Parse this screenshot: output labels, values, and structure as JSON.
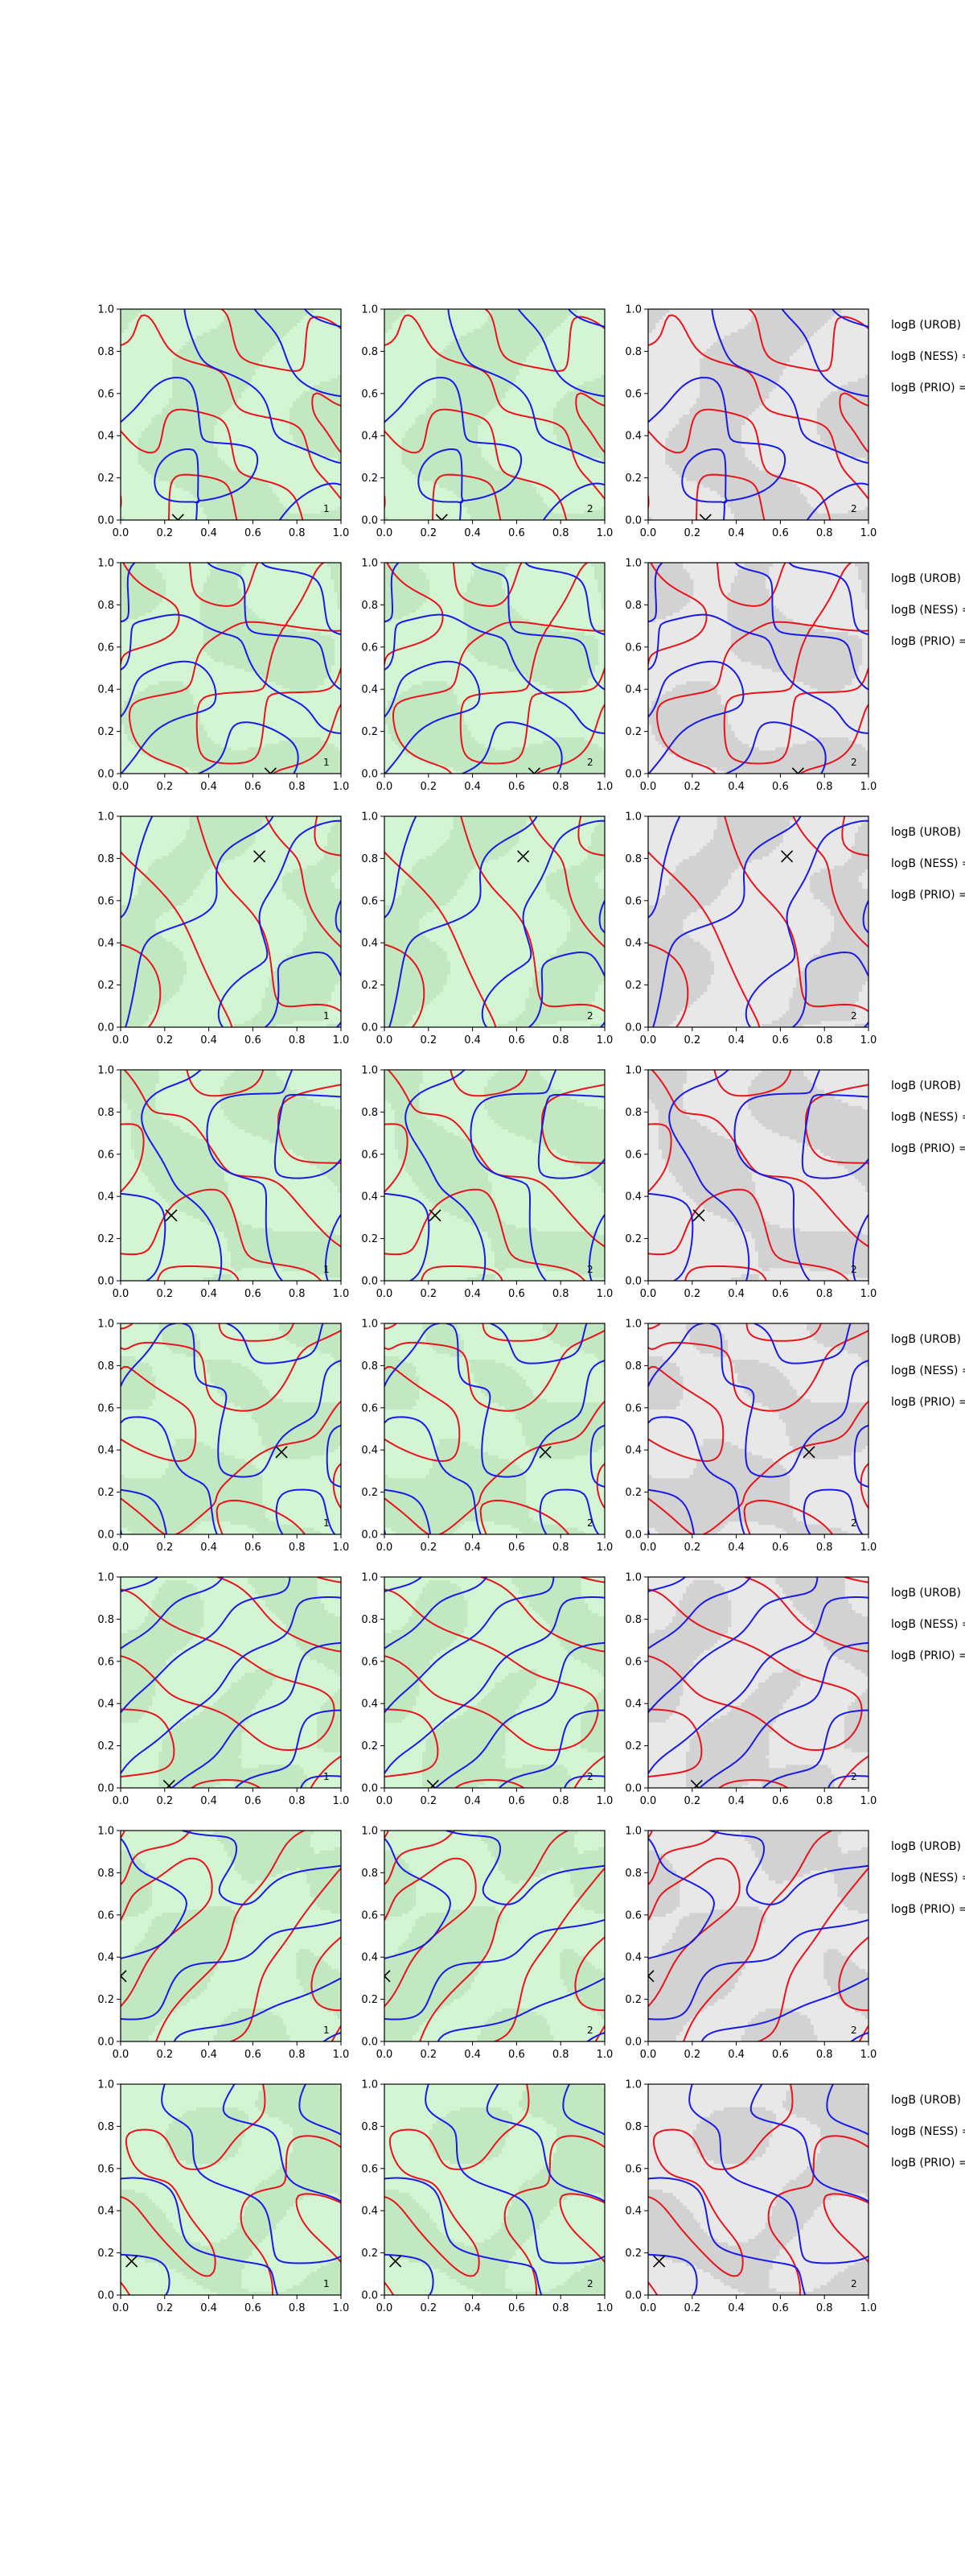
{
  "chart_data": {
    "type": "contour",
    "layout": {
      "rows": 8,
      "cols": 3
    },
    "xlim": [
      0.0,
      1.0
    ],
    "ylim": [
      0.0,
      1.0
    ],
    "ticks": [
      "0.0",
      "0.2",
      "0.4",
      "0.6",
      "0.8",
      "1.0"
    ],
    "tick_values": [
      0.0,
      0.2,
      0.4,
      0.6,
      0.8,
      1.0
    ],
    "colors": {
      "contour_a": "#e8141c",
      "contour_b": "#1a1ae6",
      "fill_green_light": "#d4f5d4",
      "fill_green_mid": "#c2e8c2",
      "fill_gray_light": "#e8e8e8",
      "fill_gray_mid": "#d2d2d2",
      "marker": "#000000"
    },
    "side_labels": [
      "logB (UROB) =",
      "logB (NESS) =",
      "logB (PRIO) ="
    ],
    "column_corner_labels": [
      "1",
      "2",
      "2"
    ],
    "column_backgrounds": [
      "green",
      "green",
      "gray"
    ],
    "rows": [
      {
        "marker": [
          0.26,
          0.0
        ],
        "seed": 11
      },
      {
        "marker": [
          0.68,
          0.0
        ],
        "seed": 23
      },
      {
        "marker": [
          0.63,
          0.81
        ],
        "seed": 37
      },
      {
        "marker": [
          0.23,
          0.31
        ],
        "seed": 41
      },
      {
        "marker": [
          0.73,
          0.39
        ],
        "seed": 53
      },
      {
        "marker": [
          0.22,
          0.01
        ],
        "seed": 67
      },
      {
        "marker": [
          0.0,
          0.31
        ],
        "seed": 79
      },
      {
        "marker": [
          0.05,
          0.16
        ],
        "seed": 97
      }
    ]
  }
}
